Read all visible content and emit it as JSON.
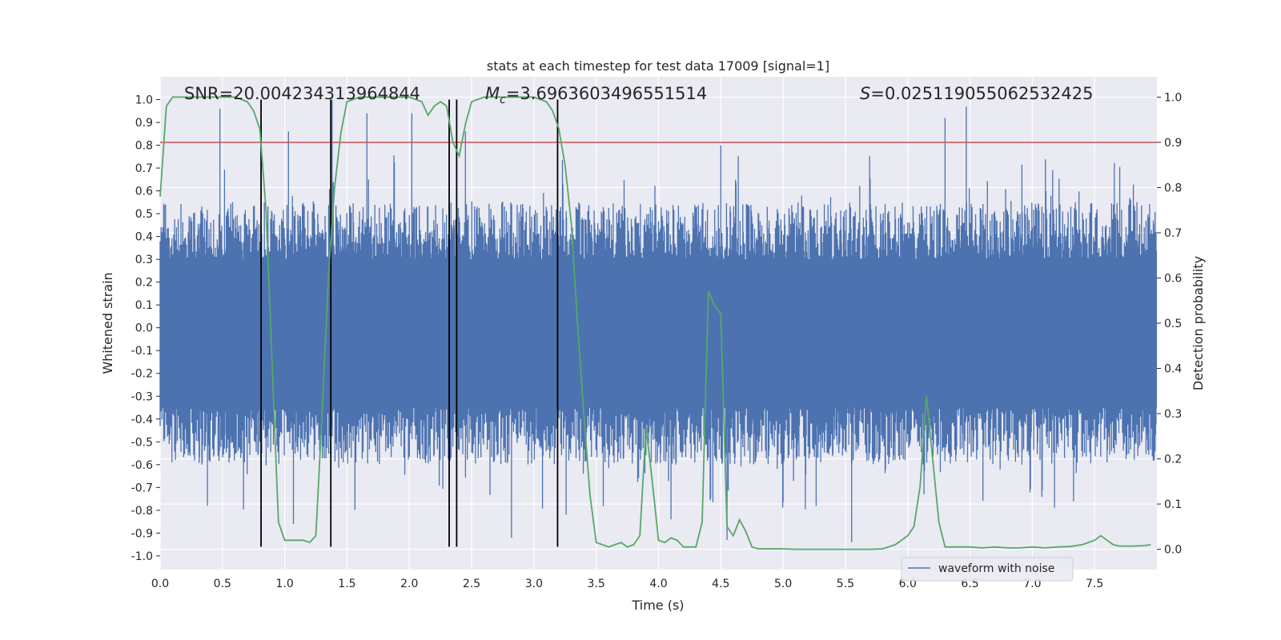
{
  "chart_data": {
    "type": "line",
    "title": "stats at each timestep for test data 17009 [signal=1]",
    "xlabel": "Time (s)",
    "ylabel": "Whitened strain",
    "y2label": "Detection probability",
    "xlim": [
      0.0,
      8.0
    ],
    "ylim": [
      -1.06,
      1.1
    ],
    "y2lim": [
      -0.045,
      1.045
    ],
    "xticks": [
      0.0,
      0.5,
      1.0,
      1.5,
      2.0,
      2.5,
      3.0,
      3.5,
      4.0,
      4.5,
      5.0,
      5.5,
      6.0,
      6.5,
      7.0,
      7.5
    ],
    "xtick_labels": [
      "0.0",
      "0.5",
      "1.0",
      "1.5",
      "2.0",
      "2.5",
      "3.0",
      "3.5",
      "4.0",
      "4.5",
      "5.0",
      "5.5",
      "6.0",
      "6.5",
      "7.0",
      "7.5"
    ],
    "yticks": [
      1.0,
      0.9,
      0.8,
      0.7,
      0.6,
      0.5,
      0.4,
      0.3,
      0.2,
      0.1,
      0.0,
      -0.1,
      -0.2,
      -0.3,
      -0.4,
      -0.5,
      -0.6,
      -0.7,
      -0.8,
      -0.9,
      -1.0
    ],
    "ytick_labels": [
      "1.0",
      "0.9",
      "0.8",
      "0.7",
      "0.6",
      "0.5",
      "0.4",
      "0.3",
      "0.2",
      "0.1",
      "0.0",
      "-0.1",
      "-0.2",
      "-0.3",
      "-0.4",
      "-0.5",
      "-0.6",
      "-0.7",
      "-0.8",
      "-0.9",
      "-1.0"
    ],
    "y2ticks": [
      1.0,
      0.9,
      0.8,
      0.7,
      0.6,
      0.5,
      0.4,
      0.3,
      0.2,
      0.1,
      0.0
    ],
    "y2tick_labels": [
      "1.0",
      "0.9",
      "0.8",
      "0.7",
      "0.6",
      "0.5",
      "0.4",
      "0.3",
      "0.2",
      "0.1",
      "0.0"
    ],
    "grid": true,
    "annotations": {
      "snr": "SNR=20.004234313964844",
      "mc": "=3.6963603496551514",
      "mc_symbol": "M",
      "mc_sub": "c",
      "s": "=0.025119055062532425",
      "s_symbol": "S"
    },
    "threshold_line": {
      "y2": 0.9,
      "color": "#c44e52"
    },
    "vertical_lines_x": [
      0.81,
      1.37,
      2.32,
      2.38,
      3.19
    ],
    "vertical_lines_y_range": [
      -0.96,
      1.0
    ],
    "series": [
      {
        "name": "waveform with noise",
        "axis": "left",
        "color": "#4c72b0",
        "x_range": [
          0.0,
          8.0
        ],
        "sample_count": 1100,
        "envelope": {
          "core_range": [
            -0.18,
            0.21
          ],
          "typical_upper": [
            0.3,
            0.55
          ],
          "typical_lower": [
            -0.35,
            -0.6
          ]
        },
        "notable_peaks": [
          {
            "x": 0.48,
            "y": 0.96
          },
          {
            "x": 1.03,
            "y": 0.86
          },
          {
            "x": 1.38,
            "y": 1.0
          },
          {
            "x": 1.66,
            "y": 0.94
          },
          {
            "x": 2.02,
            "y": 0.94
          },
          {
            "x": 2.45,
            "y": 0.86
          },
          {
            "x": 4.5,
            "y": 0.8
          },
          {
            "x": 6.3,
            "y": 0.92
          },
          {
            "x": 6.47,
            "y": 0.97
          },
          {
            "x": 0.38,
            "y": -0.78
          },
          {
            "x": 1.07,
            "y": -0.86
          },
          {
            "x": 2.82,
            "y": -0.92
          },
          {
            "x": 4.1,
            "y": -0.84
          },
          {
            "x": 4.55,
            "y": -0.93
          },
          {
            "x": 5.55,
            "y": -0.94
          }
        ]
      },
      {
        "name": "detection probability",
        "axis": "right",
        "color": "#55a868",
        "x": [
          0.0,
          0.05,
          0.1,
          0.2,
          0.3,
          0.4,
          0.5,
          0.6,
          0.7,
          0.75,
          0.8,
          0.85,
          0.9,
          0.95,
          1.0,
          1.1,
          1.15,
          1.2,
          1.25,
          1.3,
          1.35,
          1.4,
          1.45,
          1.5,
          1.6,
          1.7,
          1.8,
          1.9,
          2.0,
          2.1,
          2.15,
          2.2,
          2.25,
          2.3,
          2.35,
          2.4,
          2.45,
          2.5,
          2.6,
          2.7,
          2.8,
          2.9,
          3.0,
          3.1,
          3.15,
          3.2,
          3.25,
          3.3,
          3.35,
          3.4,
          3.45,
          3.5,
          3.6,
          3.65,
          3.7,
          3.75,
          3.8,
          3.85,
          3.9,
          3.95,
          4.0,
          4.05,
          4.1,
          4.15,
          4.2,
          4.25,
          4.3,
          4.35,
          4.4,
          4.45,
          4.5,
          4.55,
          4.6,
          4.65,
          4.7,
          4.75,
          4.8,
          4.9,
          5.0,
          5.1,
          5.2,
          5.3,
          5.4,
          5.5,
          5.6,
          5.7,
          5.8,
          5.9,
          6.0,
          6.05,
          6.1,
          6.15,
          6.2,
          6.25,
          6.3,
          6.35,
          6.4,
          6.5,
          6.6,
          6.7,
          6.8,
          6.9,
          7.0,
          7.1,
          7.2,
          7.3,
          7.4,
          7.45,
          7.5,
          7.55,
          7.6,
          7.65,
          7.7,
          7.8,
          7.9,
          7.95
        ],
        "y": [
          0.78,
          0.98,
          1.0,
          1.0,
          1.0,
          1.0,
          1.0,
          1.0,
          0.99,
          0.97,
          0.93,
          0.75,
          0.4,
          0.06,
          0.02,
          0.02,
          0.02,
          0.015,
          0.03,
          0.3,
          0.6,
          0.8,
          0.92,
          0.99,
          1.0,
          1.0,
          1.0,
          1.0,
          1.0,
          0.99,
          0.96,
          0.98,
          0.99,
          0.98,
          0.9,
          0.87,
          0.94,
          0.99,
          1.0,
          1.0,
          1.0,
          1.0,
          1.0,
          0.99,
          0.97,
          0.93,
          0.85,
          0.72,
          0.5,
          0.3,
          0.12,
          0.015,
          0.005,
          0.01,
          0.015,
          0.005,
          0.01,
          0.03,
          0.27,
          0.15,
          0.02,
          0.015,
          0.025,
          0.02,
          0.005,
          0.005,
          0.005,
          0.06,
          0.57,
          0.54,
          0.52,
          0.05,
          0.03,
          0.065,
          0.04,
          0.005,
          0.001,
          0.001,
          0.001,
          0.0,
          0.0,
          0.0,
          0.0,
          0.0,
          0.0,
          0.0,
          0.001,
          0.01,
          0.03,
          0.05,
          0.14,
          0.34,
          0.2,
          0.06,
          0.005,
          0.005,
          0.005,
          0.005,
          0.003,
          0.005,
          0.003,
          0.003,
          0.005,
          0.003,
          0.005,
          0.006,
          0.01,
          0.015,
          0.02,
          0.03,
          0.02,
          0.01,
          0.007,
          0.007,
          0.008,
          0.01
        ]
      }
    ],
    "legend": {
      "location": "lower-right-center",
      "entries": [
        "waveform with noise"
      ]
    }
  }
}
